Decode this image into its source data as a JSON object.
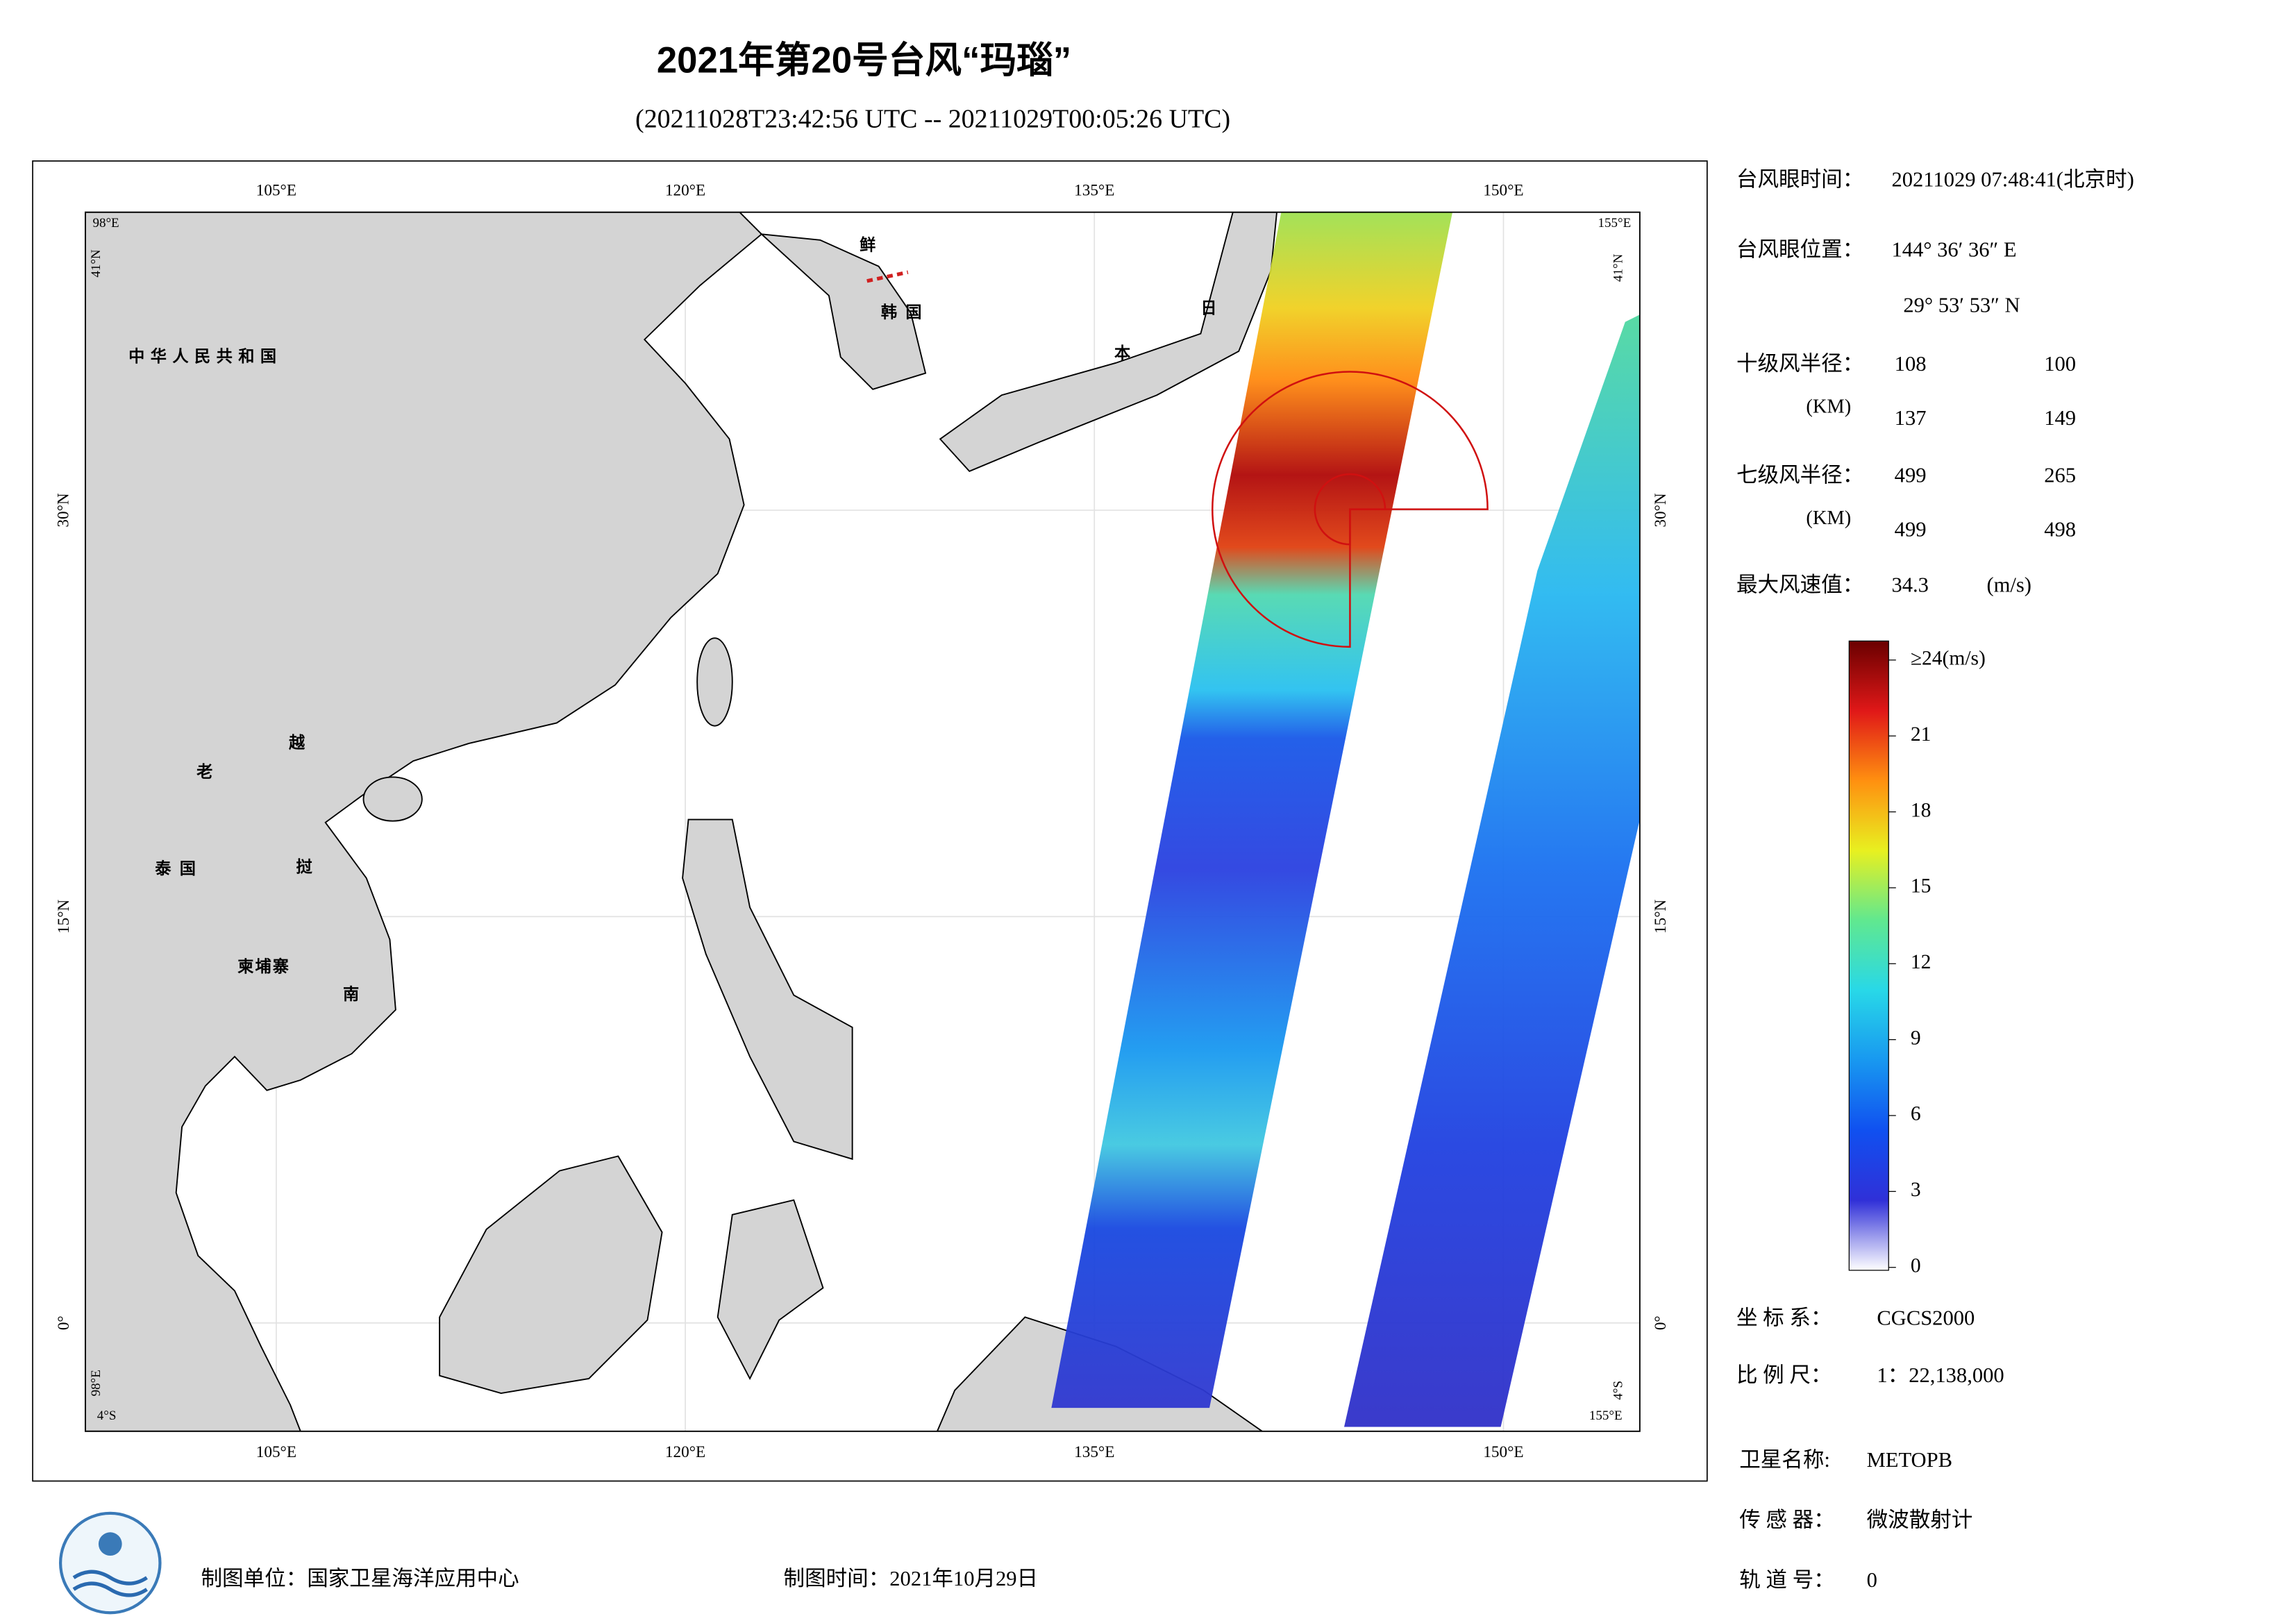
{
  "title": "2021年第20号台风“玛瑙”",
  "subtitle": "(20211028T23:42:56 UTC -- 20211029T00:05:26 UTC)",
  "map": {
    "xlim": [
      {
        "value": 98,
        "label": "98°E"
      },
      {
        "value": 155,
        "label": "155°E"
      }
    ],
    "ylim": [
      {
        "value": -4,
        "label": "4°S"
      },
      {
        "value": 41,
        "label": "41°N"
      }
    ],
    "xticks": [
      {
        "value": 105,
        "label": "105°E"
      },
      {
        "value": 120,
        "label": "120°E"
      },
      {
        "value": 135,
        "label": "135°E"
      },
      {
        "value": 150,
        "label": "150°E"
      }
    ],
    "yticks": [
      {
        "value": 0,
        "label": "0°"
      },
      {
        "value": 15,
        "label": "15°N"
      },
      {
        "value": 30,
        "label": "30°N"
      }
    ],
    "grid": true,
    "country_labels": [
      "中华人民共和国",
      "鲜",
      "韩 国",
      "日",
      "本",
      "老",
      "越",
      "泰 国",
      "挝",
      "柬埔寨",
      "南"
    ]
  },
  "info": {
    "eye_time": {
      "label": "台风眼时间：",
      "value": "20211029 07:48:41(北京时)"
    },
    "eye_position": {
      "label": "台风眼位置：",
      "lon": "144° 36′ 36″ E",
      "lat": "29° 53′ 53″ N"
    },
    "r10": {
      "label": "十级风半径：",
      "unit": "(KM)",
      "values": [
        108,
        100,
        137,
        149
      ]
    },
    "r7": {
      "label": "七级风半径：",
      "unit": "(KM)",
      "values": [
        499,
        265,
        499,
        498
      ]
    },
    "max_wind": {
      "label": "最大风速值：",
      "value": 34.3,
      "unit": "(m/s)"
    },
    "crs": {
      "label": "坐 标 系：",
      "value": "CGCS2000"
    },
    "scale": {
      "label": "比 例 尺：",
      "value": "1：22,138,000"
    },
    "satellite": {
      "label": "卫星名称:",
      "value": "METOPB"
    },
    "sensor": {
      "label": "传 感 器：",
      "value": "微波散射计"
    },
    "orbit": {
      "label": "轨 道 号：",
      "value": 0
    }
  },
  "colorbar": {
    "lim": [
      0,
      24
    ],
    "ticks": [
      0,
      3,
      6,
      9,
      12,
      15,
      18,
      21,
      {
        "value": 24,
        "label": "≥24(m/s)"
      }
    ],
    "colors": [
      "#ffffff",
      "#3030d8",
      "#1050f0",
      "#1898f0",
      "#28d8e8",
      "#60e890",
      "#e8f020",
      "#ff9010",
      "#e01818",
      "#6a0000"
    ]
  },
  "footer": {
    "unit": "制图单位：国家卫星海洋应用中心",
    "time": "制图时间：2021年10月29日"
  }
}
